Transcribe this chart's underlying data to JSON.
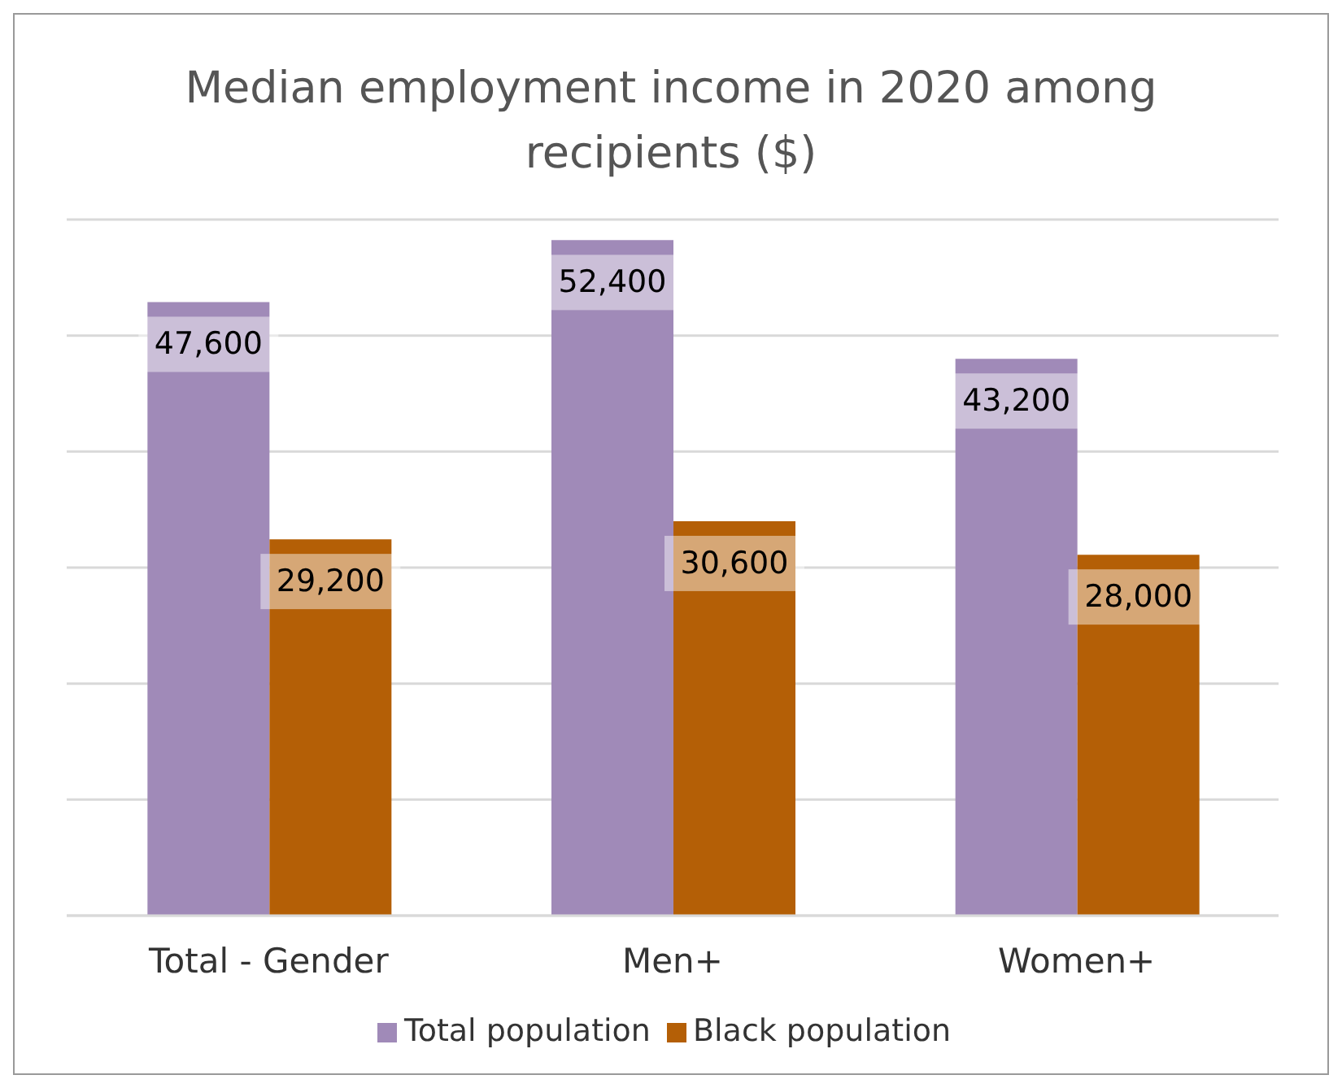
{
  "chart_data": {
    "type": "bar",
    "title": "Median employment income in 2020 among recipients ($)",
    "categories": [
      "Total - Gender",
      "Men+",
      "Women+"
    ],
    "series": [
      {
        "name": "Total population",
        "color": "#a08ab8",
        "values": [
          47600,
          52400,
          43200
        ],
        "value_labels": [
          "47,600",
          "52,400",
          "43,200"
        ]
      },
      {
        "name": "Black population",
        "color": "#b45f06",
        "values": [
          29200,
          30600,
          28000
        ],
        "value_labels": [
          "29,200",
          "30,600",
          "28,000"
        ]
      }
    ],
    "tick_labels": "x",
    "grid": "y",
    "legend": "bottom"
  }
}
